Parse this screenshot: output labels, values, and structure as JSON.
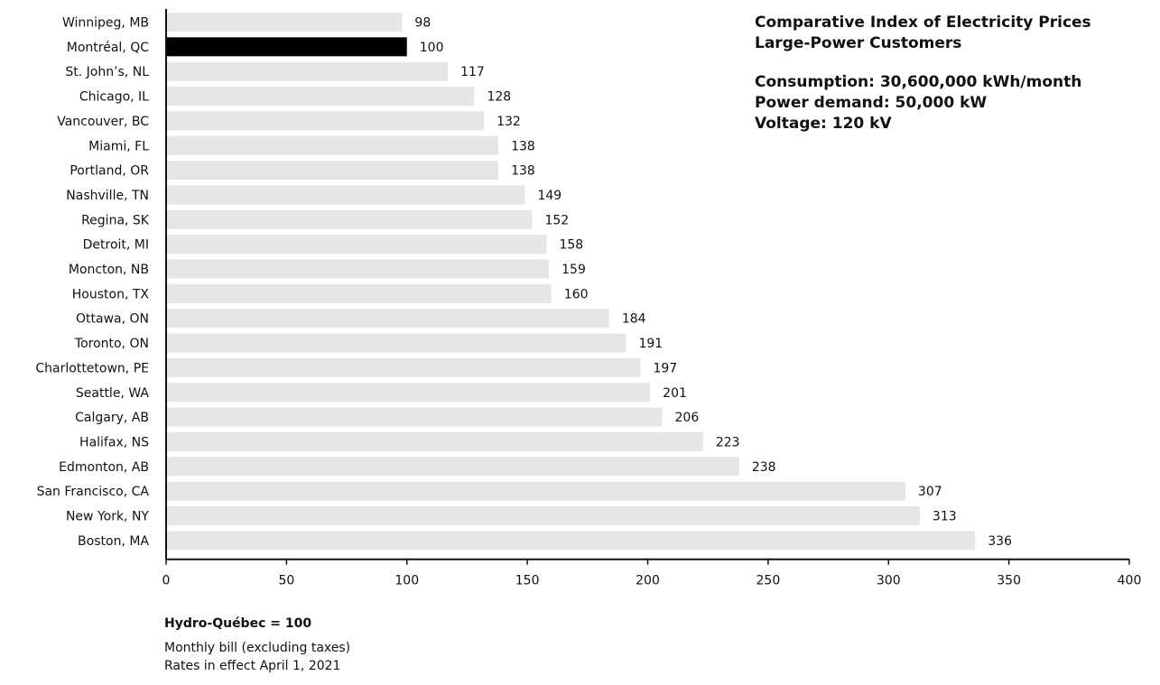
{
  "chart_data": {
    "type": "bar",
    "orientation": "horizontal",
    "title": "Comparative Index of Electricity Prices",
    "subtitle": "Large-Power Customers",
    "specs": [
      "Consumption: 30,600,000 kWh/month",
      "Power demand: 50,000 kW",
      "Voltage: 120 kV"
    ],
    "categories": [
      "Winnipeg, MB",
      "Montréal, QC",
      "St. John’s, NL",
      "Chicago, IL",
      "Vancouver, BC",
      "Miami, FL",
      "Portland, OR",
      "Nashville, TN",
      "Regina, SK",
      "Detroit, MI",
      "Moncton, NB",
      "Houston, TX",
      "Ottawa, ON",
      "Toronto, ON",
      "Charlottetown, PE",
      "Seattle, WA",
      "Calgary, AB",
      "Halifax, NS",
      "Edmonton, AB",
      "San Francisco, CA",
      "New York, NY",
      "Boston, MA"
    ],
    "values": [
      98,
      100,
      117,
      128,
      132,
      138,
      138,
      149,
      152,
      158,
      159,
      160,
      184,
      191,
      197,
      201,
      206,
      223,
      238,
      307,
      313,
      336
    ],
    "highlight_category": "Montréal, QC",
    "xlim": [
      0,
      400
    ],
    "xticks": [
      0,
      50,
      100,
      150,
      200,
      250,
      300,
      350,
      400
    ],
    "grid": false,
    "legend": "none",
    "colors": {
      "bar": "#e6e6e6",
      "highlight": "#000000",
      "axis": "#111111",
      "text": "#111111"
    }
  },
  "notes": {
    "reference": "Hydro-Québec = 100",
    "lines": [
      "Monthly bill (excluding taxes)",
      "Rates in effect April 1, 2021"
    ]
  }
}
